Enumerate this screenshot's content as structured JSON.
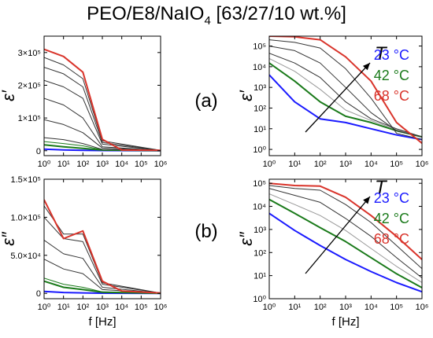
{
  "title": {
    "main": "PEO/E8/NaIO",
    "sub": "4",
    "rest": " [63/27/10 wt.%]"
  },
  "panel_labels": {
    "a": "(a)",
    "b": "(b)"
  },
  "legend": {
    "t_label": "T",
    "entries": [
      {
        "label": "23 °C",
        "color": "#1a1aff"
      },
      {
        "label": "42 °C",
        "color": "#1a7a1a"
      },
      {
        "label": "68 °C",
        "color": "#d9342b"
      }
    ]
  },
  "chart_data": [
    {
      "id": "eps1-linear",
      "type": "line",
      "ylabel": "ε′",
      "xlabel": "",
      "xscale": "log",
      "xlim": [
        1,
        1000000
      ],
      "ylim": [
        -15000,
        350000
      ],
      "yticks": [
        0,
        100000,
        200000,
        300000
      ],
      "yticklabels": [
        "0",
        "1×10⁵",
        "2×10⁵",
        "3×10⁵"
      ],
      "xticks": [
        1,
        10,
        100,
        1000,
        10000,
        100000,
        1000000
      ],
      "xticklabels": [
        "10⁰",
        "10¹",
        "10²",
        "10³",
        "10⁴",
        "10⁵",
        "10⁶"
      ],
      "series": [
        {
          "color": "#1a1aff",
          "w": 2,
          "points": [
            [
              1,
              5000
            ],
            [
              10,
              2500
            ],
            [
              100,
              1200
            ],
            [
              1000,
              500
            ],
            [
              1000000,
              200
            ]
          ]
        },
        {
          "color": "#1a7a1a",
          "w": 2,
          "points": [
            [
              1,
              18000
            ],
            [
              10,
              12000
            ],
            [
              100,
              7000
            ],
            [
              1000,
              2000
            ],
            [
              1000000,
              300
            ]
          ]
        },
        {
          "color": "#1a7a1a",
          "w": 1,
          "points": [
            [
              1,
              28000
            ],
            [
              10,
              22000
            ],
            [
              100,
              15000
            ],
            [
              1000,
              3000
            ],
            [
              1000000,
              400
            ]
          ]
        },
        {
          "color": "#333333",
          "w": 1,
          "points": [
            [
              1,
              40000
            ],
            [
              10,
              34000
            ],
            [
              100,
              22000
            ],
            [
              1000,
              4000
            ],
            [
              1000000,
              500
            ]
          ]
        },
        {
          "color": "#333333",
          "w": 1,
          "points": [
            [
              1,
              95000
            ],
            [
              10,
              80000
            ],
            [
              100,
              55000
            ],
            [
              1000,
              8000
            ],
            [
              1000000,
              600
            ]
          ]
        },
        {
          "color": "#333333",
          "w": 1,
          "points": [
            [
              1,
              160000
            ],
            [
              10,
              140000
            ],
            [
              100,
              100000
            ],
            [
              1000,
              12000
            ],
            [
              1000000,
              700
            ]
          ]
        },
        {
          "color": "#333333",
          "w": 1,
          "points": [
            [
              1,
              215000
            ],
            [
              10,
              195000
            ],
            [
              100,
              160000
            ],
            [
              1000,
              20000
            ],
            [
              1000000,
              800
            ]
          ]
        },
        {
          "color": "#333333",
          "w": 1,
          "points": [
            [
              1,
              255000
            ],
            [
              10,
              235000
            ],
            [
              100,
              195000
            ],
            [
              1000,
              25000
            ],
            [
              1000000,
              900
            ]
          ]
        },
        {
          "color": "#333333",
          "w": 1,
          "points": [
            [
              1,
              285000
            ],
            [
              10,
              262000
            ],
            [
              100,
              220000
            ],
            [
              1000,
              30000
            ],
            [
              1000000,
              1000
            ]
          ]
        },
        {
          "color": "#d9342b",
          "w": 2,
          "points": [
            [
              1,
              310000
            ],
            [
              10,
              288000
            ],
            [
              100,
              240000
            ],
            [
              1000,
              35000
            ],
            [
              10000,
              2000
            ],
            [
              1000000,
              1000
            ]
          ]
        }
      ]
    },
    {
      "id": "eps2-linear",
      "type": "line",
      "ylabel": "ε″",
      "xlabel": "f [Hz]",
      "xscale": "log",
      "xlim": [
        1,
        1000000
      ],
      "ylim": [
        -7000,
        150000
      ],
      "yticks": [
        0,
        50000,
        100000,
        150000
      ],
      "yticklabels": [
        "0",
        "5.0×10⁴",
        "1.0×10⁵",
        "1.5×10⁵"
      ],
      "xticks": [
        1,
        10,
        100,
        1000,
        10000,
        100000,
        1000000
      ],
      "xticklabels": [
        "10⁰",
        "10¹",
        "10²",
        "10³",
        "10⁴",
        "10⁵",
        "10⁶"
      ],
      "series": [
        {
          "color": "#1a1aff",
          "w": 2,
          "points": [
            [
              1,
              2500
            ],
            [
              10,
              1200
            ],
            [
              100,
              600
            ],
            [
              1000,
              200
            ],
            [
              1000000,
              50
            ]
          ]
        },
        {
          "color": "#1a7a1a",
          "w": 2,
          "points": [
            [
              1,
              16000
            ],
            [
              10,
              8000
            ],
            [
              100,
              5000
            ],
            [
              1000,
              1500
            ],
            [
              1000000,
              100
            ]
          ]
        },
        {
          "color": "#1a7a1a",
          "w": 1,
          "points": [
            [
              1,
              20000
            ],
            [
              10,
              12000
            ],
            [
              100,
              8000
            ],
            [
              1000,
              2000
            ],
            [
              1000000,
              120
            ]
          ]
        },
        {
          "color": "#333333",
          "w": 1,
          "points": [
            [
              1,
              45000
            ],
            [
              10,
              32000
            ],
            [
              100,
              26000
            ],
            [
              1000,
              5000
            ],
            [
              1000000,
              200
            ]
          ]
        },
        {
          "color": "#333333",
          "w": 1,
          "points": [
            [
              1,
              70000
            ],
            [
              10,
              52000
            ],
            [
              100,
              46000
            ],
            [
              1000,
              8000
            ],
            [
              1000000,
              250
            ]
          ]
        },
        {
          "color": "#333333",
          "w": 1,
          "points": [
            [
              1,
              100000
            ],
            [
              10,
              72000
            ],
            [
              100,
              68000
            ],
            [
              1000,
              12000
            ],
            [
              1000000,
              300
            ]
          ]
        },
        {
          "color": "#333333",
          "w": 1,
          "points": [
            [
              1,
              115000
            ],
            [
              10,
              78000
            ],
            [
              100,
              78000
            ],
            [
              1000,
              14000
            ],
            [
              1000000,
              350
            ]
          ]
        },
        {
          "color": "#d9342b",
          "w": 2,
          "points": [
            [
              1,
              123000
            ],
            [
              10,
              72000
            ],
            [
              100,
              82000
            ],
            [
              1000,
              16000
            ],
            [
              10000,
              3000
            ],
            [
              1000000,
              400
            ]
          ]
        }
      ]
    },
    {
      "id": "eps1-log",
      "type": "line",
      "ylabel": "ε′",
      "xlabel": "",
      "xscale": "log",
      "yscale": "log",
      "xlim": [
        1,
        1000000
      ],
      "ylim": [
        0.5,
        300000
      ],
      "yticks": [
        1,
        10,
        100,
        1000,
        10000,
        100000
      ],
      "yticklabels": [
        "10⁰",
        "10¹",
        "10²",
        "10³",
        "10⁴",
        "10⁵"
      ],
      "xticks": [
        1,
        10,
        100,
        1000,
        10000,
        100000,
        1000000
      ],
      "xticklabels": [
        "10⁰",
        "10¹",
        "10²",
        "10³",
        "10⁴",
        "10⁵",
        "10⁶"
      ],
      "series": [
        {
          "color": "#1a1aff",
          "w": 2,
          "points": [
            [
              1,
              4000
            ],
            [
              10,
              200
            ],
            [
              100,
              30
            ],
            [
              1000,
              20
            ],
            [
              10000,
              10
            ],
            [
              100000,
              5
            ],
            [
              1000000,
              3
            ]
          ]
        },
        {
          "color": "#1a7a1a",
          "w": 2,
          "points": [
            [
              1,
              15000
            ],
            [
              10,
              2000
            ],
            [
              100,
              200
            ],
            [
              1000,
              40
            ],
            [
              10000,
              20
            ],
            [
              100000,
              8
            ],
            [
              1000000,
              4
            ]
          ]
        },
        {
          "color": "#999999",
          "w": 1,
          "points": [
            [
              1,
              25000
            ],
            [
              10,
              6000
            ],
            [
              100,
              800
            ],
            [
              1000,
              80
            ],
            [
              10000,
              25
            ],
            [
              100000,
              9
            ],
            [
              1000000,
              4
            ]
          ]
        },
        {
          "color": "#333333",
          "w": 1,
          "points": [
            [
              1,
              45000
            ],
            [
              10,
              15000
            ],
            [
              100,
              3000
            ],
            [
              1000,
              200
            ],
            [
              10000,
              30
            ],
            [
              100000,
              10
            ],
            [
              1000000,
              4
            ]
          ]
        },
        {
          "color": "#333333",
          "w": 1,
          "points": [
            [
              1,
              100000
            ],
            [
              10,
              60000
            ],
            [
              100,
              15000
            ],
            [
              1000,
              1000
            ],
            [
              10000,
              60
            ],
            [
              100000,
              8
            ],
            [
              1000000,
              4
            ]
          ]
        },
        {
          "color": "#333333",
          "w": 1,
          "points": [
            [
              1,
              200000
            ],
            [
              10,
              150000
            ],
            [
              100,
              80000
            ],
            [
              1000,
              8000
            ],
            [
              10000,
              300
            ],
            [
              100000,
              6
            ],
            [
              1000000,
              3
            ]
          ]
        },
        {
          "color": "#d9342b",
          "w": 2,
          "points": [
            [
              1,
              300000
            ],
            [
              10,
              280000
            ],
            [
              100,
              200000
            ],
            [
              1000,
              30000
            ],
            [
              10000,
              2000
            ],
            [
              100000,
              20
            ],
            [
              1000000,
              2
            ]
          ]
        }
      ]
    },
    {
      "id": "eps2-log",
      "type": "line",
      "ylabel": "ε″",
      "xlabel": "f [Hz]",
      "xscale": "log",
      "yscale": "log",
      "xlim": [
        1,
        1000000
      ],
      "ylim": [
        1,
        150000
      ],
      "yticks": [
        1,
        10,
        100,
        1000,
        10000,
        100000
      ],
      "yticklabels": [
        "10⁰",
        "10¹",
        "10²",
        "10³",
        "10⁴",
        "10⁵"
      ],
      "xticks": [
        1,
        10,
        100,
        1000,
        10000,
        100000,
        1000000
      ],
      "xticklabels": [
        "10⁰",
        "10¹",
        "10²",
        "10³",
        "10⁴",
        "10⁵",
        "10⁶"
      ],
      "series": [
        {
          "color": "#1a1aff",
          "w": 2,
          "points": [
            [
              1,
              5000
            ],
            [
              10,
              900
            ],
            [
              100,
              200
            ],
            [
              1000,
              50
            ],
            [
              10000,
              15
            ],
            [
              100000,
              5
            ],
            [
              1000000,
              2
            ]
          ]
        },
        {
          "color": "#1a7a1a",
          "w": 2,
          "points": [
            [
              1,
              20000
            ],
            [
              10,
              5000
            ],
            [
              100,
              1200
            ],
            [
              1000,
              300
            ],
            [
              10000,
              60
            ],
            [
              100000,
              12
            ],
            [
              1000000,
              3
            ]
          ]
        },
        {
          "color": "#999999",
          "w": 1,
          "points": [
            [
              1,
              35000
            ],
            [
              10,
              12000
            ],
            [
              100,
              4000
            ],
            [
              1000,
              900
            ],
            [
              10000,
              150
            ],
            [
              100000,
              25
            ],
            [
              1000000,
              5
            ]
          ]
        },
        {
          "color": "#333333",
          "w": 1,
          "points": [
            [
              1,
              60000
            ],
            [
              10,
              30000
            ],
            [
              100,
              15000
            ],
            [
              1000,
              3000
            ],
            [
              10000,
              500
            ],
            [
              100000,
              60
            ],
            [
              1000000,
              8
            ]
          ]
        },
        {
          "color": "#333333",
          "w": 1,
          "points": [
            [
              1,
              80000
            ],
            [
              10,
              60000
            ],
            [
              100,
              50000
            ],
            [
              1000,
              12000
            ],
            [
              10000,
              2000
            ],
            [
              100000,
              200
            ],
            [
              1000000,
              20
            ]
          ]
        },
        {
          "color": "#d9342b",
          "w": 2,
          "points": [
            [
              1,
              100000
            ],
            [
              10,
              80000
            ],
            [
              100,
              75000
            ],
            [
              1000,
              25000
            ],
            [
              10000,
              4000
            ],
            [
              100000,
              500
            ],
            [
              1000000,
              50
            ]
          ]
        }
      ]
    }
  ]
}
